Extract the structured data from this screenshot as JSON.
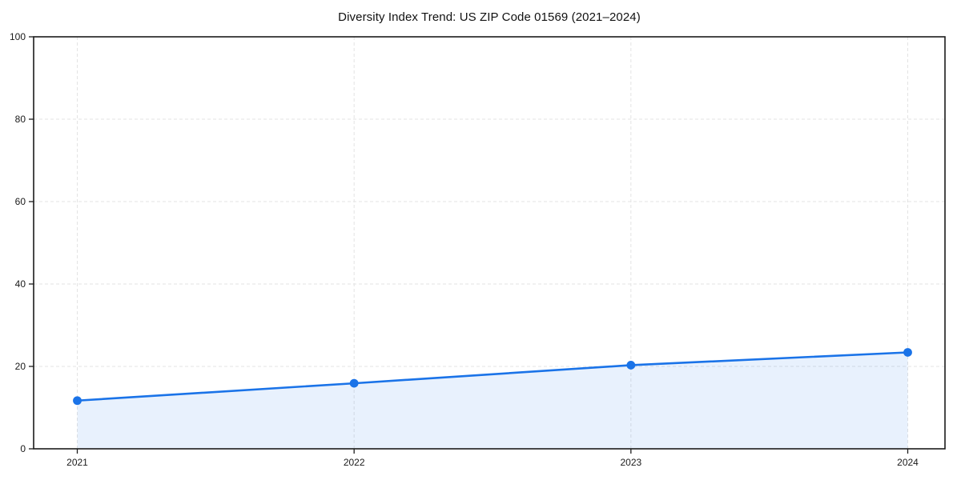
{
  "title": "Diversity Index Trend: US ZIP Code 01569 (2021–2024)",
  "chart_data": {
    "type": "area",
    "title": "Diversity Index Trend: US ZIP Code 01569 (2021–2024)",
    "categories": [
      "2021",
      "2022",
      "2023",
      "2024"
    ],
    "series": [
      {
        "name": "Diversity Index",
        "values": [
          11.7,
          15.9,
          20.3,
          23.4
        ]
      }
    ],
    "xlabel": "",
    "ylabel": "",
    "ylim": [
      0,
      100
    ],
    "y_ticks": [
      0,
      20,
      40,
      60,
      80,
      100
    ],
    "grid": "dashed, both axes",
    "legend": "none",
    "marker": "circle",
    "colors": {
      "line": "#1a73e8",
      "marker": "#1a73e8",
      "fill": "#1a73e8",
      "fill_opacity": 0.1,
      "gridline": "#e3e3e3",
      "spine": "#1c1c1c",
      "tick_text": "#1a1a1a"
    }
  }
}
